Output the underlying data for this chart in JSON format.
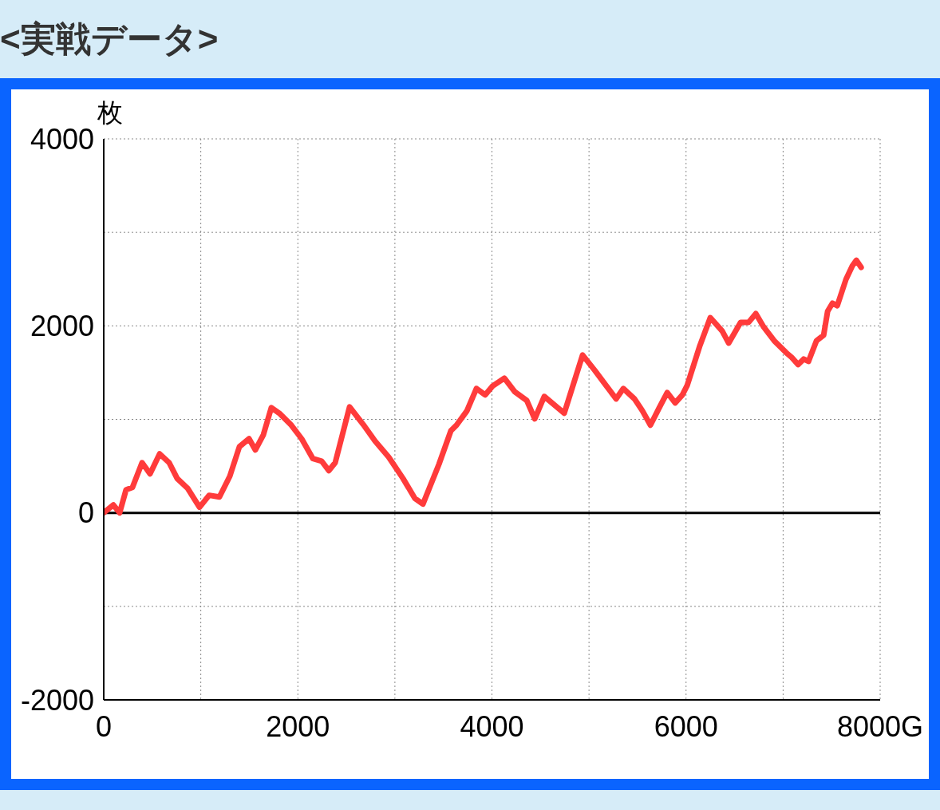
{
  "chart_data": {
    "type": "line",
    "title": "<実戦データ>",
    "ylabel": "枚",
    "xlim": [
      0,
      8000
    ],
    "xticks": [
      0,
      {
        "value": 1000,
        "label": null
      },
      2000,
      {
        "value": 3000,
        "label": null
      },
      4000,
      {
        "value": 5000,
        "label": null
      },
      6000,
      {
        "value": 7000,
        "label": null
      },
      {
        "value": 8000,
        "label": "8000G"
      }
    ],
    "ylim": [
      -2000,
      4000
    ],
    "yticks": [
      -2000,
      {
        "value": -1000,
        "label": null
      },
      0,
      {
        "value": 1000,
        "label": null
      },
      2000,
      {
        "value": 3000,
        "label": null
      },
      4000
    ],
    "grid": true,
    "marker": "none",
    "line_style": "solid",
    "ref_lines": [
      {
        "axis": "y",
        "value": 0,
        "color": "#000000",
        "line_style": "solid"
      }
    ],
    "series": [
      {
        "color": "#ff3b3b",
        "x": [
          0,
          99,
          164,
          230,
          296,
          395,
          477,
          576,
          674,
          757,
          863,
          987,
          1086,
          1192,
          1299,
          1398,
          1497,
          1562,
          1645,
          1727,
          1809,
          1933,
          2039,
          2155,
          2245,
          2319,
          2385,
          2533,
          2673,
          2796,
          2936,
          3084,
          3207,
          3289,
          3454,
          3577,
          3635,
          3742,
          3840,
          3931,
          4005,
          4128,
          4235,
          4359,
          4441,
          4539,
          4745,
          4934,
          5058,
          5181,
          5280,
          5354,
          5469,
          5551,
          5633,
          5724,
          5806,
          5888,
          5962,
          6012,
          6143,
          6250,
          6373,
          6439,
          6562,
          6645,
          6719,
          6801,
          6908,
          7031,
          7089,
          7155,
          7212,
          7262,
          7344,
          7418,
          7459,
          7508,
          7558,
          7648,
          7714,
          7755,
          7804
        ],
        "values": [
          0,
          85,
          0,
          247,
          273,
          537,
          418,
          631,
          537,
          367,
          264,
          60,
          188,
          170,
          392,
          708,
          793,
          673,
          835,
          1125,
          1066,
          938,
          793,
          580,
          554,
          452,
          537,
          1134,
          946,
          767,
          597,
          367,
          153,
          94,
          520,
          878,
          938,
          1091,
          1330,
          1262,
          1355,
          1441,
          1296,
          1202,
          1006,
          1245,
          1066,
          1688,
          1526,
          1355,
          1219,
          1330,
          1219,
          1091,
          938,
          1125,
          1287,
          1176,
          1262,
          1364,
          1790,
          2088,
          1944,
          1816,
          2038,
          2038,
          2131,
          1986,
          1841,
          1714,
          1662,
          1586,
          1645,
          1620,
          1841,
          1901,
          2157,
          2242,
          2216,
          2498,
          2643,
          2702,
          2626
        ]
      }
    ]
  }
}
